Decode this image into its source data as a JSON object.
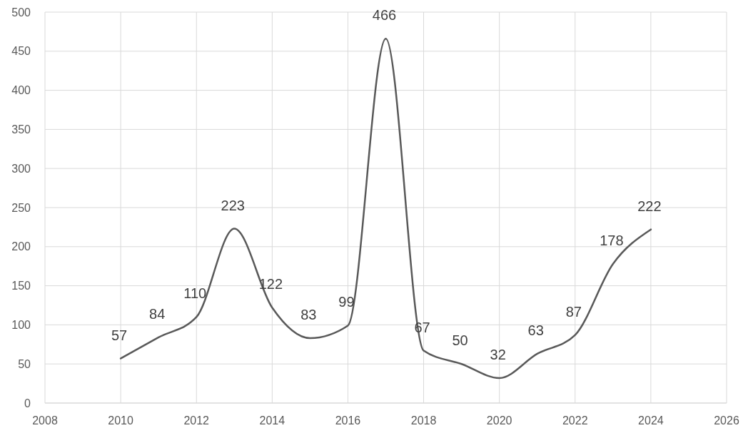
{
  "chart_data": {
    "type": "line",
    "x": [
      2010,
      2011,
      2012,
      2013,
      2014,
      2015,
      2016,
      2017,
      2018,
      2019,
      2020,
      2021,
      2022,
      2023,
      2024
    ],
    "series": [
      {
        "color": "#595959",
        "values": [
          57,
          84,
          110,
          223,
          122,
          83,
          99,
          466,
          67,
          50,
          32,
          63,
          87,
          178,
          222
        ]
      }
    ],
    "xlim": [
      2008,
      2026
    ],
    "xticks": [
      2008,
      2010,
      2012,
      2014,
      2016,
      2018,
      2020,
      2022,
      2024,
      2026
    ],
    "ylim": [
      0,
      500
    ],
    "yticks": [
      0,
      50,
      100,
      150,
      200,
      250,
      300,
      350,
      400,
      450,
      500
    ],
    "grid": true,
    "data_labels": true,
    "marker": "none",
    "line_style": "solid"
  }
}
